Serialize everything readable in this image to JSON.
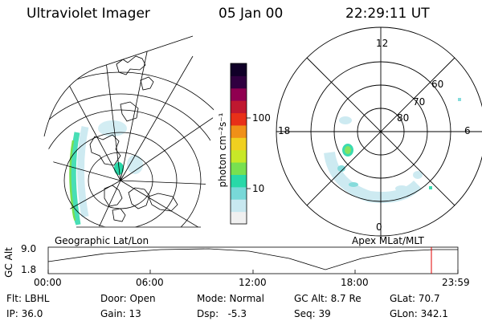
{
  "header": {
    "title": "Ultraviolet Imager",
    "date": "05 Jan 00",
    "time": "22:29:11 UT"
  },
  "left_panel": {
    "caption": "Geographic Lat/Lon"
  },
  "right_panel": {
    "caption": "Apex MLat/MLT",
    "mlt_labels": {
      "top": "12",
      "left": "18",
      "right": "6",
      "bottom": "0"
    },
    "lat_labels": [
      "60",
      "70",
      "80"
    ]
  },
  "colorbar": {
    "unit_label": "photon cm⁻²s⁻¹",
    "ticks": [
      "100",
      "10"
    ],
    "scale": "log",
    "colors": [
      "#f0f0f0",
      "#c8e8f0",
      "#78d8d8",
      "#28d8a8",
      "#78e050",
      "#c8e828",
      "#f0d020",
      "#f09018",
      "#e83018",
      "#c01830",
      "#900050",
      "#300040",
      "#100028"
    ]
  },
  "timeline": {
    "ylabel": "GC Alt",
    "yticks": [
      "9.0",
      "1.8"
    ],
    "xticks": [
      "00:00",
      "06:00",
      "12:00",
      "18:00",
      "23:59"
    ],
    "marker_time": "22:29",
    "marker_color": "#e00000"
  },
  "info": {
    "flt": "Flt: LBHL",
    "ip": "IP: 36.0",
    "door": "Door: Open",
    "gain": "Gain: 13",
    "mode": "Mode: Normal",
    "dsp": "Dsp:   -5.3",
    "gc_alt": "GC Alt: 8.7 Re",
    "seq": "Seq: 39",
    "glat": "GLat: 70.7",
    "glon": "GLon: 342.1"
  }
}
